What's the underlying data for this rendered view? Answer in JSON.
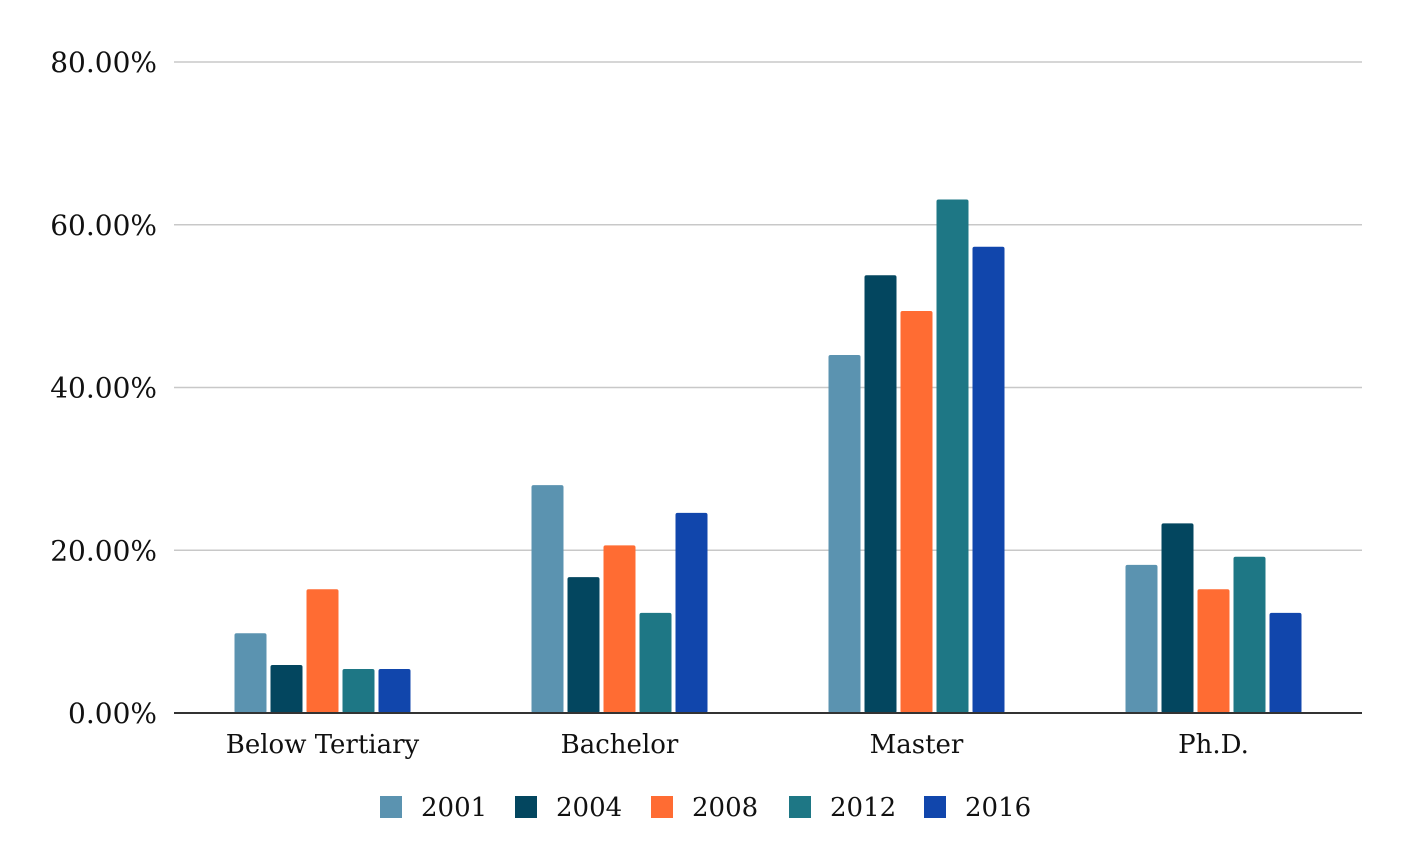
{
  "chart_data": {
    "type": "bar",
    "title": "",
    "xlabel": "",
    "ylabel": "",
    "categories": [
      "Below Tertiary",
      "Bachelor",
      "Master",
      "Ph.D."
    ],
    "ylim": [
      0,
      80
    ],
    "yticks": [
      0,
      20,
      40,
      60,
      80
    ],
    "ytick_labels": [
      "0.00%",
      "20.00%",
      "40.00%",
      "60.00%",
      "80.00%"
    ],
    "grid": true,
    "legend_position": "bottom",
    "series": [
      {
        "name": "2001",
        "color": "#5b93b0",
        "values": [
          9.8,
          28.0,
          44.0,
          18.2
        ]
      },
      {
        "name": "2004",
        "color": "#03465f",
        "values": [
          5.9,
          16.7,
          53.8,
          23.3
        ]
      },
      {
        "name": "2008",
        "color": "#ff6c33",
        "values": [
          15.2,
          20.6,
          49.4,
          15.2
        ]
      },
      {
        "name": "2012",
        "color": "#1e7785",
        "values": [
          5.4,
          12.3,
          63.1,
          19.2
        ]
      },
      {
        "name": "2016",
        "color": "#1146ac",
        "values": [
          5.4,
          24.6,
          57.3,
          12.3
        ]
      }
    ]
  }
}
